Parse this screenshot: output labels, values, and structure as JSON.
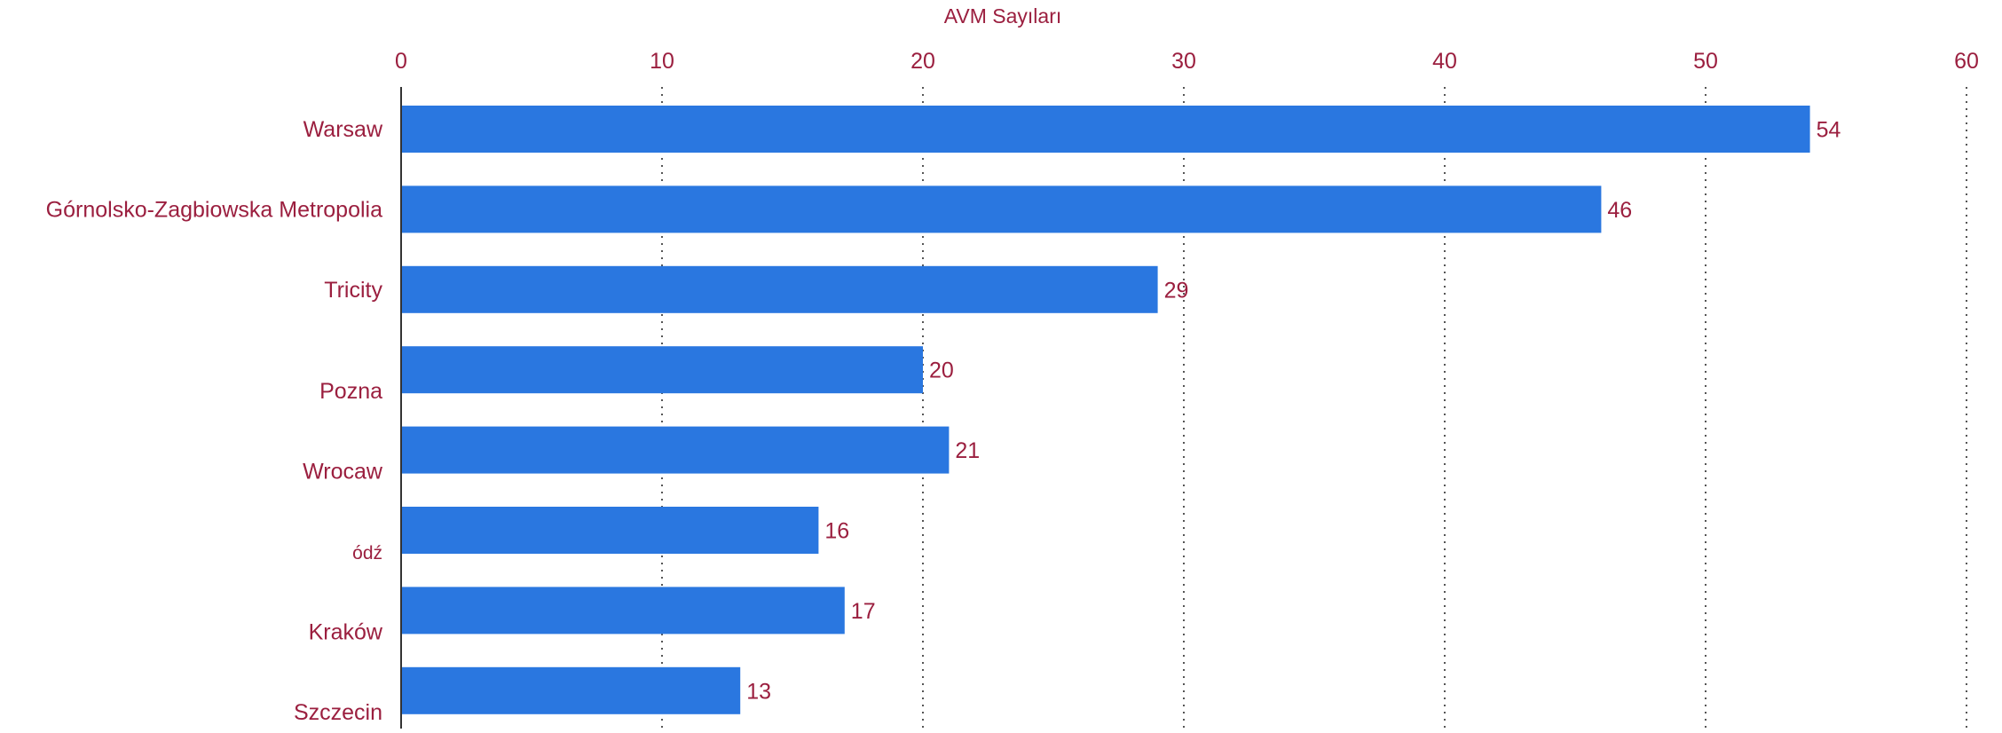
{
  "chart_data": {
    "type": "bar",
    "orientation": "horizontal",
    "title": "AVM Sayıları",
    "xlabel": "",
    "ylabel": "",
    "categories": [
      "Warsaw",
      "Górnolsko-Zagbiowska Metropolia",
      "Tricity",
      "Pozna",
      "Wrocaw",
      "ódź",
      "Kraków",
      "Szczecin"
    ],
    "values": [
      54,
      46,
      29,
      20,
      21,
      16,
      17,
      13
    ],
    "xlim": [
      0,
      60
    ],
    "xticks": [
      "0",
      "10",
      "20",
      "30",
      "40",
      "50",
      "60"
    ],
    "grid": "vertical-dotted",
    "axis_position": "top",
    "legend": "none",
    "colors": {
      "bar": "#2a77e0",
      "text": "#9b1f3f",
      "axis": "#333333",
      "grid": "#555555"
    }
  }
}
